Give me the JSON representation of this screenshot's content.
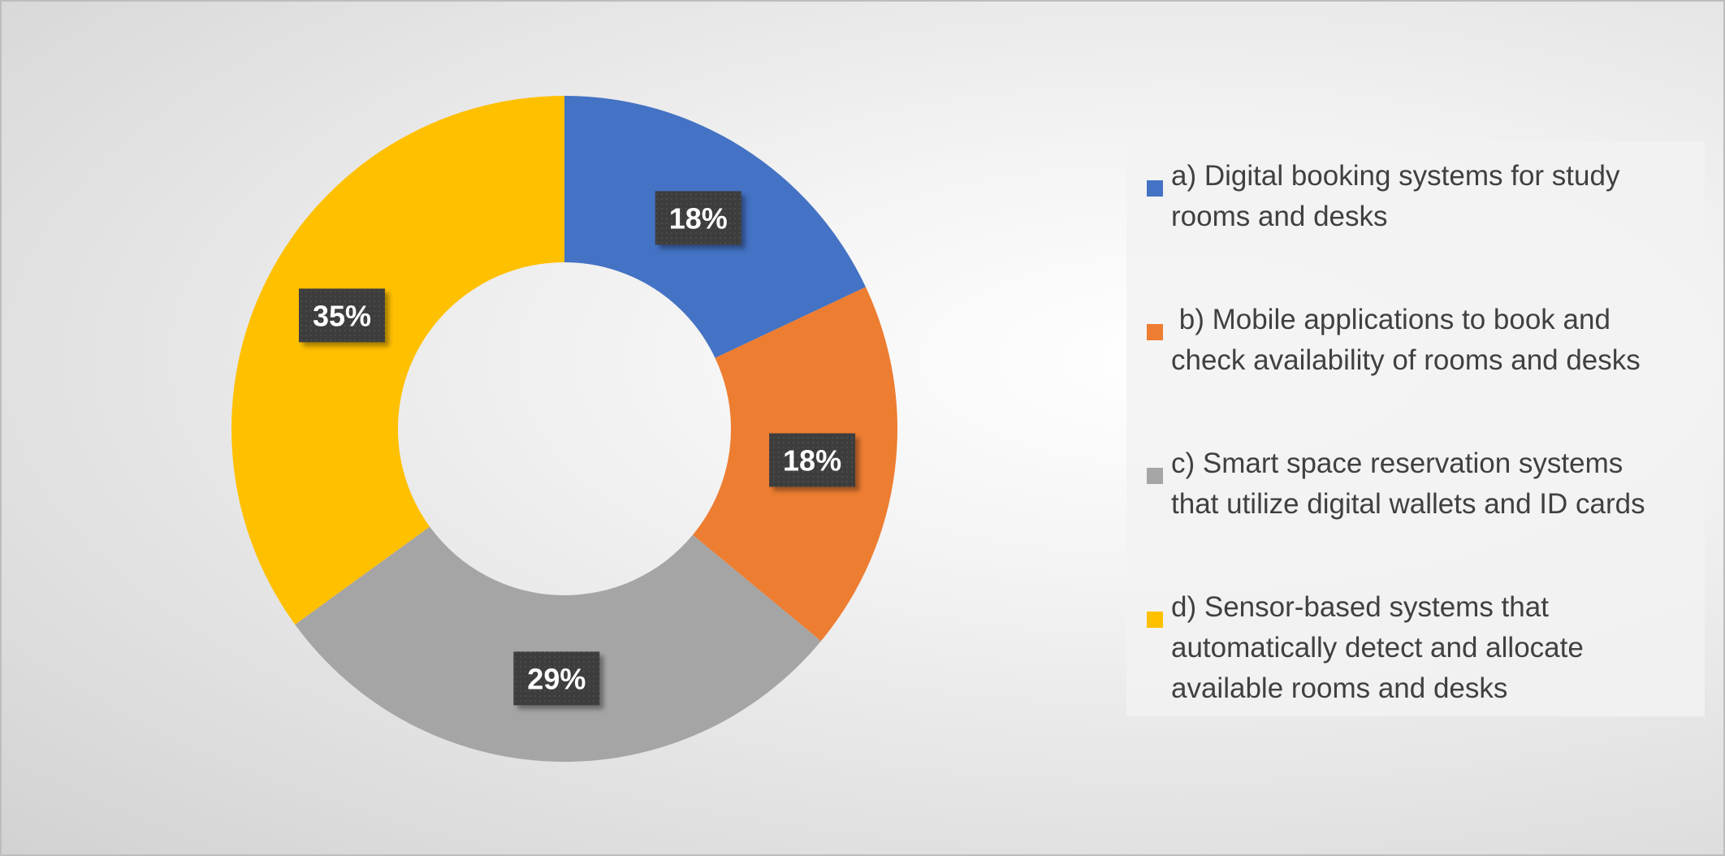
{
  "chart_data": {
    "type": "pie",
    "variant": "donut",
    "title": "",
    "categories": [
      "a) Digital booking systems for study rooms and desks",
      " b) Mobile applications to book and check availability of rooms and desks",
      "c) Smart space reservation systems that utilize digital wallets and ID cards",
      "d) Sensor-based systems that automatically detect and allocate available rooms and desks"
    ],
    "values": [
      18,
      18,
      29,
      35
    ],
    "data_labels": [
      "18%",
      "18%",
      "29%",
      "35%"
    ],
    "colors": [
      "#4472c4",
      "#ed7d31",
      "#a5a5a5",
      "#ffc000"
    ],
    "legend_position": "right",
    "legend_lines": [
      [
        "a) Digital booking systems for study",
        "rooms and desks"
      ],
      [
        " b) Mobile applications to book and",
        "check availability of rooms and desks"
      ],
      [
        "c) Smart space reservation systems",
        "that utilize digital wallets and ID cards"
      ],
      [
        "d) Sensor-based systems that",
        "automatically detect and allocate",
        "available rooms and desks"
      ]
    ]
  }
}
